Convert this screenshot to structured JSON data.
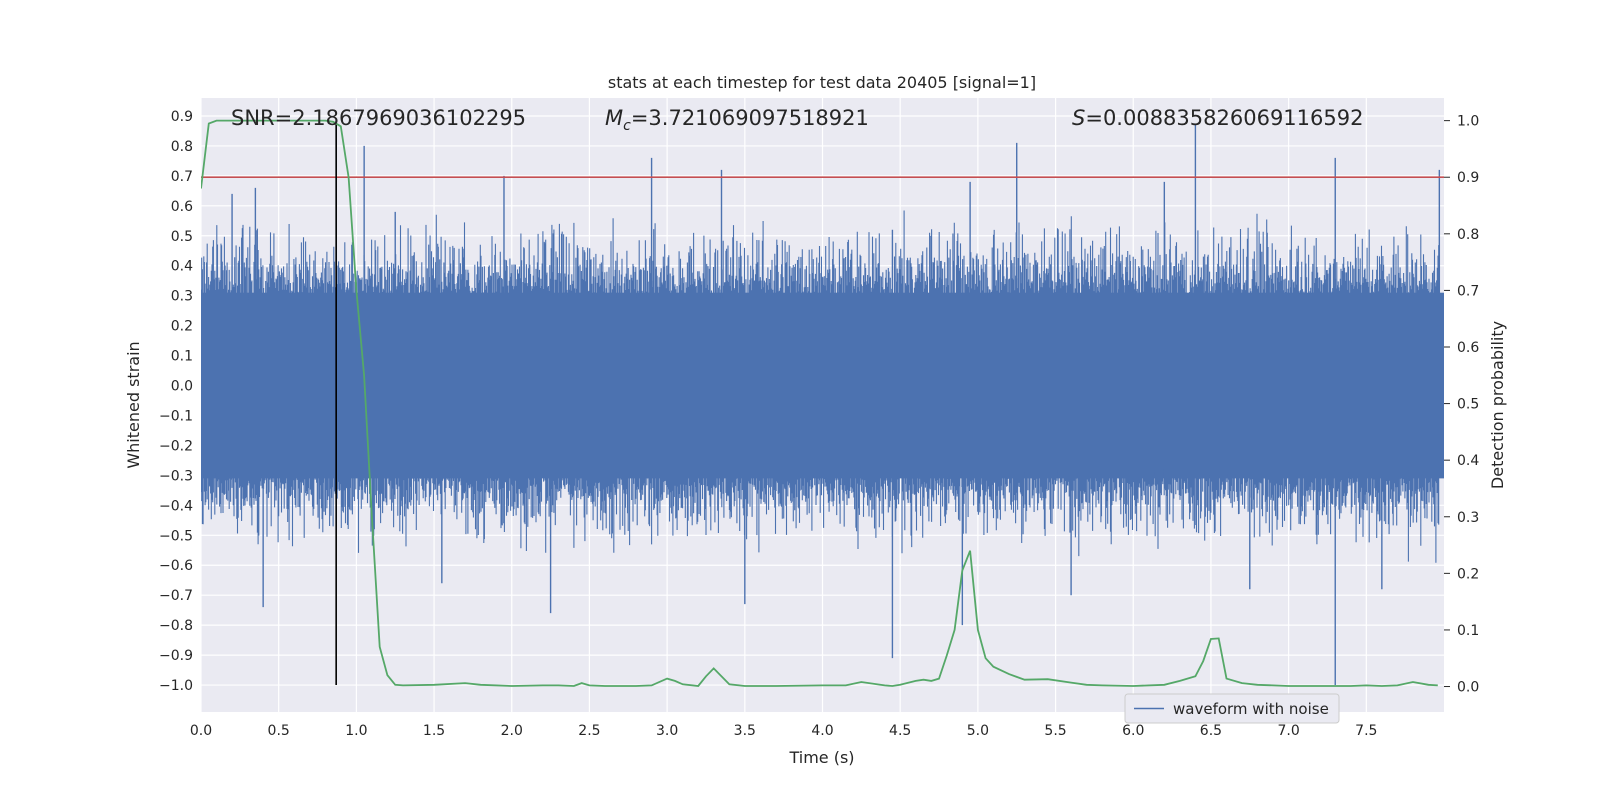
{
  "chart_data": {
    "type": "line",
    "title": "stats at each timestep for test data 20405 [signal=1]",
    "xlabel": "Time (s)",
    "ylabel_left": "Whitened strain",
    "ylabel_right": "Detection probability",
    "xlim": [
      0.0,
      8.0
    ],
    "ylim_left": [
      -1.09,
      0.96
    ],
    "ylim_right": [
      -0.045,
      1.04
    ],
    "x_ticks": [
      "0.0",
      "0.5",
      "1.0",
      "1.5",
      "2.0",
      "2.5",
      "3.0",
      "3.5",
      "4.0",
      "4.5",
      "5.0",
      "5.5",
      "6.0",
      "6.5",
      "7.0",
      "7.5"
    ],
    "y_left_ticks": [
      "0.9",
      "0.8",
      "0.7",
      "0.6",
      "0.5",
      "0.4",
      "0.3",
      "0.2",
      "0.1",
      "0.0",
      "−0.1",
      "−0.2",
      "−0.3",
      "−0.4",
      "−0.5",
      "−0.6",
      "−0.7",
      "−0.8",
      "−0.9",
      "−1.0"
    ],
    "y_right_ticks": [
      "1.0",
      "0.9",
      "0.8",
      "0.7",
      "0.6",
      "0.5",
      "0.4",
      "0.3",
      "0.2",
      "0.1",
      "0.0"
    ],
    "annotations": {
      "snr": "SNR=2.1867969036102295",
      "mc_symbol": "M",
      "mc_sub": "c",
      "mc_value": "=3.721069097518921",
      "s_symbol": "S",
      "s_value": "=0.008835826069116592"
    },
    "legend": {
      "label": "waveform with noise",
      "position": "bottom-right"
    },
    "waveform": {
      "name": "waveform with noise",
      "color": "#4c72b0",
      "envelope": 0.5,
      "spikes": [
        [
          0.2,
          0.64
        ],
        [
          0.35,
          0.66
        ],
        [
          0.87,
          0.87
        ],
        [
          1.05,
          0.8
        ],
        [
          1.25,
          0.58
        ],
        [
          1.95,
          0.7
        ],
        [
          2.9,
          0.76
        ],
        [
          3.35,
          0.72
        ],
        [
          4.45,
          0.52
        ],
        [
          4.95,
          0.68
        ],
        [
          5.25,
          0.81
        ],
        [
          6.4,
          0.87
        ],
        [
          7.3,
          0.76
        ],
        [
          7.97,
          0.72
        ],
        [
          6.2,
          0.68
        ],
        [
          4.9,
          -0.8
        ],
        [
          4.45,
          -0.91
        ],
        [
          3.5,
          -0.73
        ],
        [
          2.25,
          -0.76
        ],
        [
          0.4,
          -0.74
        ],
        [
          7.3,
          -1.0
        ],
        [
          5.6,
          -0.7
        ],
        [
          6.75,
          -0.68
        ],
        [
          1.55,
          -0.66
        ],
        [
          7.6,
          -0.68
        ]
      ]
    },
    "threshold": {
      "value": 0.9,
      "axis": "right",
      "color": "#c44e52"
    },
    "marker_time": {
      "value": 0.87,
      "color": "#000000"
    },
    "probability": {
      "name": "detection probability",
      "color": "#55a868",
      "x": [
        0.0,
        0.05,
        0.1,
        0.15,
        0.2,
        0.3,
        0.4,
        0.5,
        0.6,
        0.7,
        0.8,
        0.85,
        0.9,
        0.95,
        1.0,
        1.05,
        1.1,
        1.15,
        1.2,
        1.25,
        1.3,
        1.5,
        1.7,
        1.8,
        2.0,
        2.2,
        2.3,
        2.4,
        2.45,
        2.5,
        2.6,
        2.8,
        2.9,
        3.0,
        3.05,
        3.1,
        3.2,
        3.25,
        3.3,
        3.4,
        3.5,
        3.7,
        4.0,
        4.15,
        4.25,
        4.4,
        4.45,
        4.5,
        4.6,
        4.65,
        4.7,
        4.75,
        4.8,
        4.85,
        4.9,
        4.95,
        5.0,
        5.05,
        5.1,
        5.2,
        5.3,
        5.45,
        5.6,
        5.7,
        5.8,
        6.0,
        6.2,
        6.3,
        6.4,
        6.45,
        6.5,
        6.55,
        6.6,
        6.7,
        6.8,
        7.0,
        7.2,
        7.4,
        7.5,
        7.6,
        7.7,
        7.8,
        7.9,
        7.96
      ],
      "y": [
        0.88,
        0.995,
        1.0,
        1.0,
        1.0,
        1.0,
        1.0,
        1.0,
        1.0,
        1.0,
        1.0,
        0.998,
        0.99,
        0.9,
        0.7,
        0.55,
        0.3,
        0.07,
        0.02,
        0.003,
        0.002,
        0.003,
        0.006,
        0.003,
        0.001,
        0.002,
        0.002,
        0.001,
        0.006,
        0.002,
        0.001,
        0.001,
        0.002,
        0.014,
        0.01,
        0.004,
        0.001,
        0.018,
        0.032,
        0.004,
        0.001,
        0.001,
        0.002,
        0.002,
        0.008,
        0.002,
        0.001,
        0.003,
        0.01,
        0.012,
        0.01,
        0.014,
        0.055,
        0.1,
        0.205,
        0.24,
        0.1,
        0.05,
        0.035,
        0.022,
        0.012,
        0.013,
        0.007,
        0.003,
        0.002,
        0.001,
        0.003,
        0.01,
        0.018,
        0.045,
        0.084,
        0.085,
        0.014,
        0.006,
        0.003,
        0.001,
        0.001,
        0.001,
        0.002,
        0.001,
        0.002,
        0.008,
        0.003,
        0.002
      ]
    },
    "grid": true,
    "background": "#eaeaf2"
  }
}
